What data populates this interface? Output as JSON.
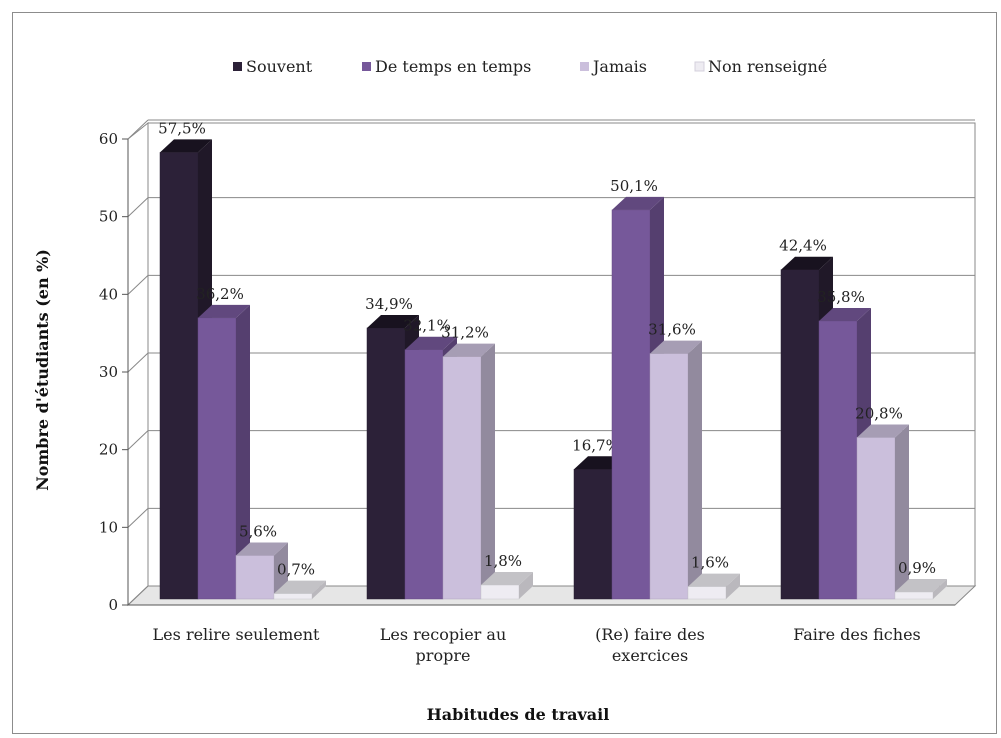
{
  "chart_data": {
    "type": "bar",
    "title": "",
    "xlabel": "Habitudes de travail",
    "ylabel": "Nombre d'étudiants (en %)",
    "ylim": [
      0,
      60
    ],
    "yticks": [
      "0",
      "10",
      "20",
      "30",
      "40",
      "50",
      "60"
    ],
    "categories": [
      "Les relire seulement",
      "Les recopier au propre",
      "(Re) faire des exercices",
      "Faire des fiches"
    ],
    "category_lines": [
      [
        "Les relire seulement"
      ],
      [
        "Les recopier au",
        "propre"
      ],
      [
        "(Re) faire des",
        "exercices"
      ],
      [
        "Faire des fiches"
      ]
    ],
    "series": [
      {
        "name": "Souvent",
        "values": [
          57.5,
          34.9,
          16.7,
          42.4
        ],
        "labels": [
          "57,5%",
          "34,9%",
          "16,7%",
          "42,4%"
        ],
        "color": "#2c2138"
      },
      {
        "name": "De temps en temps",
        "values": [
          36.2,
          32.1,
          50.1,
          35.8
        ],
        "labels": [
          "36,2%",
          "32,1%",
          "50,1%",
          "35,8%"
        ],
        "color": "#76589a"
      },
      {
        "name": "Jamais",
        "values": [
          5.6,
          31.2,
          31.6,
          20.8
        ],
        "labels": [
          "5,6%",
          "31,2%",
          "31,6%",
          "20,8%"
        ],
        "color": "#cbbfdc"
      },
      {
        "name": "Non renseigné",
        "values": [
          0.7,
          1.8,
          1.6,
          0.9
        ],
        "labels": [
          "0,7%",
          "1,8%",
          "1,6%",
          "0,9%"
        ],
        "color": "#eeecf2"
      }
    ],
    "legend_position": "top",
    "grid": true,
    "style": "3d-clustered"
  }
}
